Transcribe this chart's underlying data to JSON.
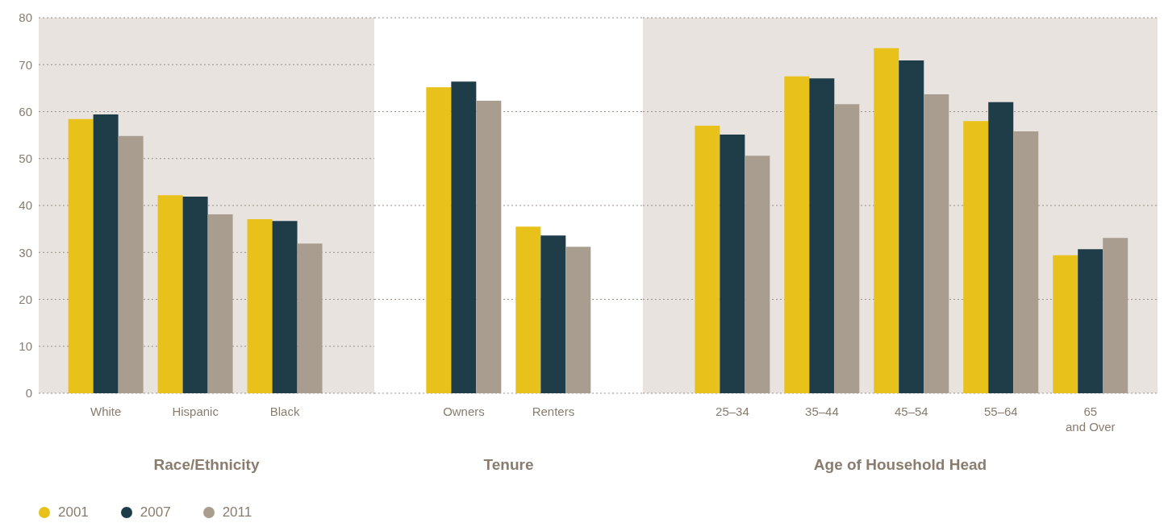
{
  "chart_data": [
    {
      "type": "bar",
      "xlabel": "Race/Ethnicity",
      "categories": [
        "White",
        "Hispanic",
        "Black"
      ],
      "series": [
        {
          "name": "2001",
          "color": "#e8c21a",
          "values": [
            58.4,
            42.2,
            37.1
          ]
        },
        {
          "name": "2007",
          "color": "#1f3d48",
          "values": [
            59.4,
            41.9,
            36.7
          ]
        },
        {
          "name": "2011",
          "color": "#a99d90",
          "values": [
            54.8,
            38.1,
            31.9
          ]
        }
      ],
      "ylim": [
        0,
        80
      ],
      "yticks": [
        0,
        10,
        20,
        30,
        40,
        50,
        60,
        70,
        80
      ],
      "grid": "y",
      "legend": "bottom left"
    },
    {
      "type": "bar",
      "xlabel": "Tenure",
      "categories": [
        "Owners",
        "Renters"
      ],
      "series": [
        {
          "color": "#e8c21a",
          "values": [
            65.2,
            35.5
          ]
        },
        {
          "color": "#1f3d48",
          "values": [
            66.4,
            33.6
          ]
        },
        {
          "color": "#a99d90",
          "values": [
            62.3,
            31.2
          ]
        }
      ],
      "ylim": [
        0,
        80
      ],
      "grid": "y",
      "tick_labels": "x"
    },
    {
      "type": "bar",
      "xlabel": "Age of Household Head",
      "categories": [
        "25–34",
        "35–44",
        "45–54",
        "55–64",
        "65\nand Over"
      ],
      "series": [
        {
          "color": "#e8c21a",
          "values": [
            57.0,
            67.5,
            73.5,
            58.0,
            29.4
          ]
        },
        {
          "color": "#1f3d48",
          "values": [
            55.1,
            67.1,
            70.9,
            62.0,
            30.7
          ]
        },
        {
          "color": "#a99d90",
          "values": [
            50.6,
            61.6,
            63.7,
            55.8,
            33.1
          ]
        }
      ],
      "ylim": [
        0,
        80
      ],
      "grid": "y",
      "tick_labels": "x"
    }
  ]
}
